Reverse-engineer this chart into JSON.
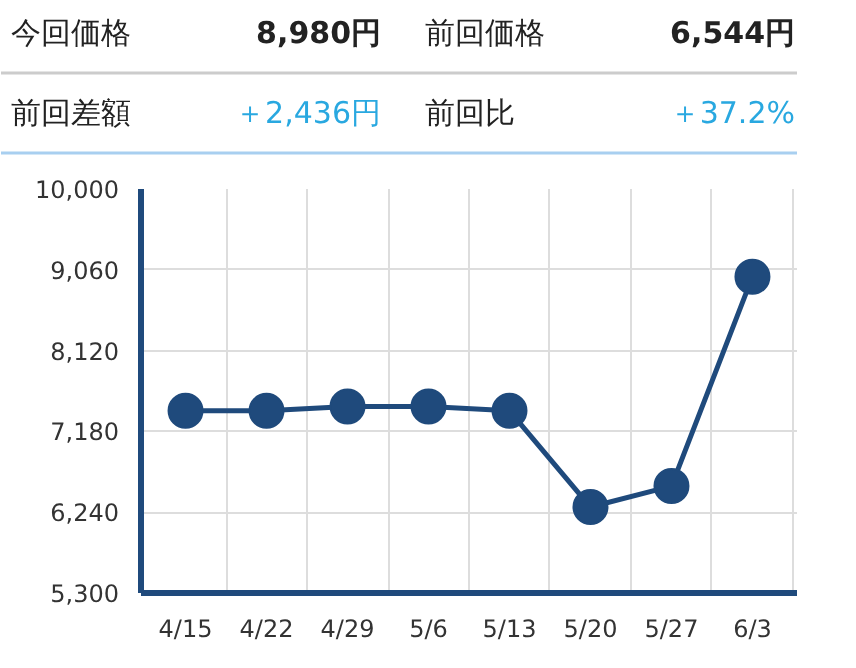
{
  "chart_data": [
    {
      "type": "other",
      "annotations": [
        "今回価格",
        "8,980円",
        "前回価格",
        "6,544円",
        "前回差額",
        "＋2,436円",
        "前回比",
        "＋37.2%"
      ]
    },
    {
      "type": "line",
      "categories": [
        "4/15",
        "4/22",
        "4/29",
        "5/6",
        "5/13",
        "5/20",
        "5/27",
        "6/3"
      ],
      "series": [
        {
          "color": "#1f4a7c",
          "values": [
            7420,
            7420,
            7470,
            7470,
            7420,
            6300,
            6544,
            8980
          ]
        }
      ],
      "ylim": [
        5300,
        10000
      ],
      "yticks": [
        {
          "value": 5300,
          "label": "5,300"
        },
        {
          "value": 6240,
          "label": "6,240"
        },
        {
          "value": 7180,
          "label": "7,180"
        },
        {
          "value": 8120,
          "label": "8,120"
        },
        {
          "value": 9060,
          "label": "9,060"
        },
        {
          "value": 10000,
          "label": "10,000"
        }
      ],
      "grid": true,
      "marker": "circle",
      "line_style": "solid"
    }
  ]
}
